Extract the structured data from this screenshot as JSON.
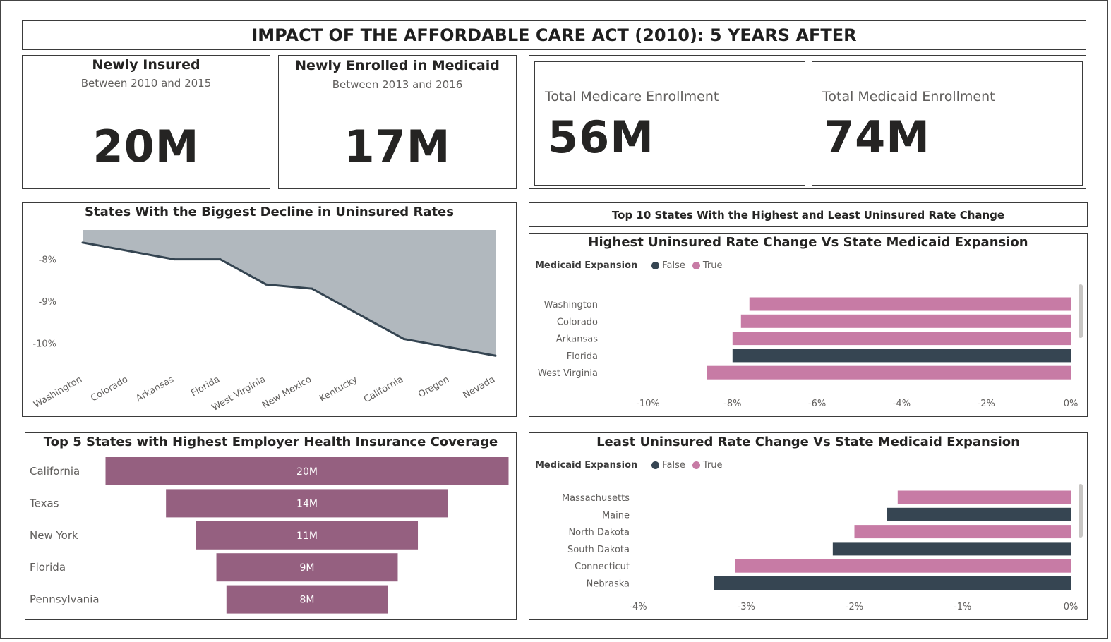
{
  "title": "IMPACT OF THE AFFORDABLE CARE ACT (2010): 5 YEARS AFTER",
  "kpis": {
    "newly_insured": {
      "title": "Newly Insured",
      "subtitle": "Between 2010 and 2015",
      "value": "20M"
    },
    "newly_medicaid": {
      "title": "Newly Enrolled in Medicaid",
      "subtitle": "Between 2013 and 2016",
      "value": "17M"
    },
    "medicare": {
      "label": "Total Medicare Enrollment",
      "value": "56M"
    },
    "medicaid": {
      "label": "Total Medicaid Enrollment",
      "value": "74M"
    }
  },
  "colors": {
    "false": "#364552",
    "true": "#c77ba5",
    "funnel": "#956080",
    "area": "#b1b8be",
    "line": "#344451"
  },
  "section_header": "Top 10 States With the Highest and Least Uninsured Rate Change",
  "chart_data": [
    {
      "type": "area",
      "title": "States With the Biggest Decline in Uninsured Rates",
      "categories": [
        "Washington",
        "Colorado",
        "Arkansas",
        "Florida",
        "West Virginia",
        "New Mexico",
        "Kentucky",
        "California",
        "Oregon",
        "Nevada"
      ],
      "values": [
        -7.6,
        -7.8,
        -8.0,
        -8.0,
        -8.6,
        -8.7,
        -9.3,
        -9.9,
        -10.1,
        -10.3
      ],
      "ylim": [
        -10.7,
        -7.3
      ],
      "yticks": [
        -8,
        -9,
        -10
      ],
      "ytick_labels": [
        "-8%",
        "-9%",
        "-10%"
      ]
    },
    {
      "type": "bar",
      "orientation": "horizontal",
      "title": "Highest Uninsured Rate Change Vs State Medicaid Expansion",
      "legend_title": "Medicaid Expansion",
      "legend": [
        "False",
        "True"
      ],
      "categories": [
        "Washington",
        "Colorado",
        "Arkansas",
        "Florida",
        "West Virginia"
      ],
      "values": [
        -7.6,
        -7.8,
        -8.0,
        -8.0,
        -8.6
      ],
      "expansion": [
        true,
        true,
        true,
        false,
        true
      ],
      "xlim": [
        -10,
        0
      ],
      "xticks": [
        -10,
        -8,
        -6,
        -4,
        -2,
        0
      ],
      "xtick_labels": [
        "-10%",
        "-8%",
        "-6%",
        "-4%",
        "-2%",
        "0%"
      ]
    },
    {
      "type": "bar",
      "orientation": "horizontal",
      "title": "Least Uninsured Rate Change Vs State Medicaid Expansion",
      "legend_title": "Medicaid Expansion",
      "legend": [
        "False",
        "True"
      ],
      "categories": [
        "Massachusetts",
        "Maine",
        "North Dakota",
        "South Dakota",
        "Connecticut",
        "Nebraska"
      ],
      "values": [
        -1.6,
        -1.7,
        -2.0,
        -2.2,
        -3.1,
        -3.3
      ],
      "expansion": [
        true,
        false,
        true,
        false,
        true,
        false
      ],
      "xlim": [
        -4,
        0
      ],
      "xticks": [
        -4,
        -3,
        -2,
        -1,
        0
      ],
      "xtick_labels": [
        "-4%",
        "-3%",
        "-2%",
        "-1%",
        "0%"
      ]
    },
    {
      "type": "funnel",
      "title": "Top 5 States with Highest Employer Health Insurance Coverage",
      "categories": [
        "California",
        "Texas",
        "New York",
        "Florida",
        "Pennsylvania"
      ],
      "values": [
        20,
        14,
        11,
        9,
        8
      ],
      "value_labels": [
        "20M",
        "14M",
        "11M",
        "9M",
        "8M"
      ]
    }
  ]
}
